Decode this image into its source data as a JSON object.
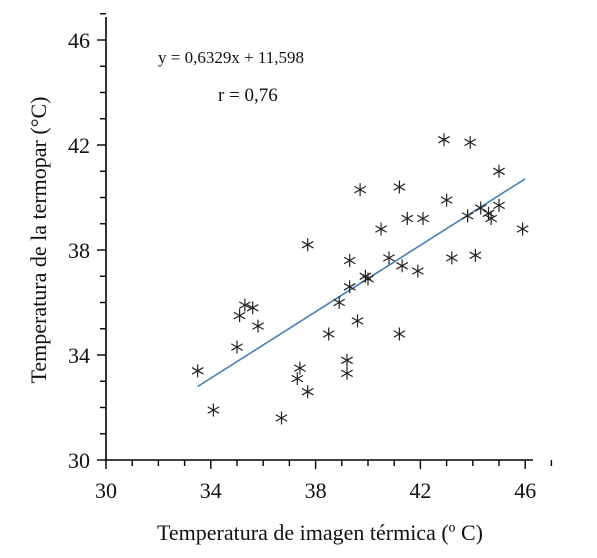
{
  "chart_data": {
    "type": "scatter",
    "xlabel": "Temperatura de imagen térmica (º C)",
    "ylabel": "Temperatura de la termopar (°C)",
    "xlim": [
      30,
      47
    ],
    "ylim": [
      30,
      47
    ],
    "xticks": [
      "30",
      "34",
      "38",
      "42",
      "46"
    ],
    "yticks": [
      "30",
      "34",
      "38",
      "42",
      "46"
    ],
    "equation": "y = 0,6329x + 11,598",
    "r_text": "r  = 0,76",
    "grid": false,
    "marker": "asterisk",
    "colors": {
      "points": "#222222",
      "trendline": "#4a7fb5",
      "axis": "#000000"
    },
    "trendline": {
      "slope": 0.6329,
      "intercept": 11.598,
      "x_range": [
        33.5,
        46
      ]
    },
    "points": [
      [
        33.5,
        33.4
      ],
      [
        34.1,
        31.9
      ],
      [
        35.0,
        34.3
      ],
      [
        35.1,
        35.5
      ],
      [
        35.3,
        35.9
      ],
      [
        35.6,
        35.8
      ],
      [
        35.8,
        35.1
      ],
      [
        36.7,
        31.6
      ],
      [
        37.3,
        33.1
      ],
      [
        37.4,
        33.5
      ],
      [
        37.7,
        32.6
      ],
      [
        37.7,
        38.2
      ],
      [
        38.5,
        34.8
      ],
      [
        38.9,
        36.0
      ],
      [
        39.2,
        33.3
      ],
      [
        39.2,
        33.8
      ],
      [
        39.3,
        37.6
      ],
      [
        39.3,
        36.6
      ],
      [
        39.6,
        35.3
      ],
      [
        39.7,
        40.3
      ],
      [
        39.9,
        37.0
      ],
      [
        40.0,
        36.9
      ],
      [
        40.5,
        38.8
      ],
      [
        40.8,
        37.7
      ],
      [
        41.2,
        40.4
      ],
      [
        41.2,
        34.8
      ],
      [
        41.3,
        37.4
      ],
      [
        41.5,
        39.2
      ],
      [
        41.9,
        37.2
      ],
      [
        42.1,
        39.2
      ],
      [
        42.9,
        42.2
      ],
      [
        43.0,
        39.9
      ],
      [
        43.2,
        37.7
      ],
      [
        43.8,
        39.3
      ],
      [
        43.9,
        42.1
      ],
      [
        44.1,
        37.8
      ],
      [
        44.3,
        39.6
      ],
      [
        44.6,
        39.4
      ],
      [
        44.7,
        39.2
      ],
      [
        45.0,
        41.0
      ],
      [
        45.0,
        39.7
      ],
      [
        45.9,
        38.8
      ]
    ]
  }
}
